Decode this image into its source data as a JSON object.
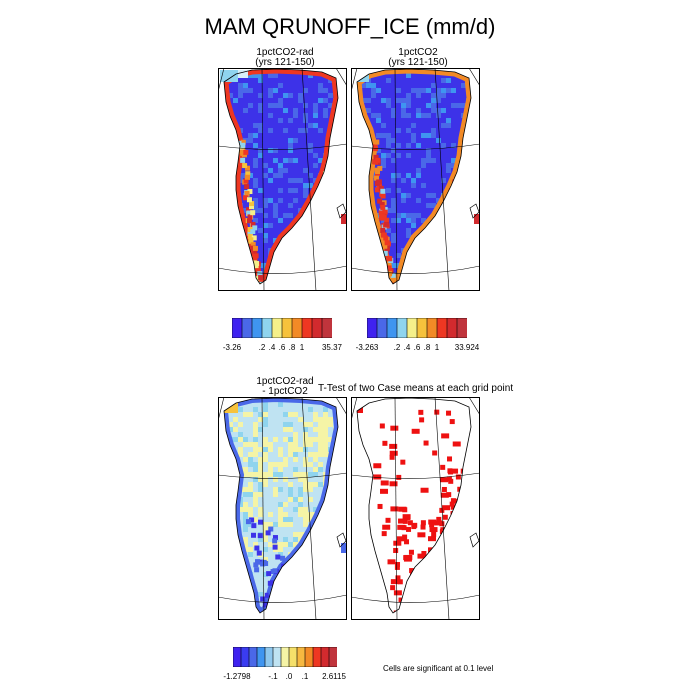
{
  "main_title": "MAM QRUNOFF_ICE (mm/d)",
  "panels": {
    "p1": {
      "title_line1": "1pctCO2-rad",
      "title_line2": "(yrs 121-150)"
    },
    "p2": {
      "title_line1": "1pctCO2",
      "title_line2": "(yrs 121-150)"
    },
    "p3": {
      "title_line1": "1pctCO2-rad",
      "title_line2": "- 1pctCO2"
    },
    "p4": {
      "title": "T-Test of two Case means at each grid point"
    }
  },
  "footnote": "Cells are significant at 0.1 level",
  "colorbars": {
    "cb1": {
      "labels": [
        "-3.26",
        ".2",
        ".4",
        ".6",
        ".8",
        "1",
        "35.37"
      ],
      "colors": [
        "#3f22f0",
        "#4a68e8",
        "#3f95f0",
        "#8fd4ee",
        "#f5f08a",
        "#f6c23c",
        "#f28a26",
        "#ee3722",
        "#d22a2e",
        "#c0343c"
      ]
    },
    "cb2": {
      "labels": [
        "-3.263",
        ".2",
        ".4",
        ".6",
        ".8",
        "1",
        "33.924"
      ],
      "colors": [
        "#3f22f0",
        "#4a68e8",
        "#3f95f0",
        "#8fd4ee",
        "#f5f08a",
        "#f6c23c",
        "#f28a26",
        "#ee3722",
        "#d22a2e",
        "#c0343c"
      ]
    },
    "cb3": {
      "labels": [
        "-1.2798",
        "-.1",
        ".0",
        ".1",
        "2.6115"
      ],
      "colors": [
        "#3f22f0",
        "#3a3cf0",
        "#4a68e8",
        "#3f95f0",
        "#8fc8ee",
        "#bfe3f2",
        "#f5f4a6",
        "#f5e06a",
        "#f6b840",
        "#f28a26",
        "#ee3722",
        "#d22a2e",
        "#c0343c"
      ]
    }
  },
  "chart_data": [
    {
      "type": "heatmap",
      "title": "1pctCO2-rad (yrs 121-150)",
      "region": "Greenland",
      "color_levels": [
        "-3.26",
        ".2",
        ".4",
        ".6",
        ".8",
        "1",
        "35.37"
      ],
      "pattern": "interior mostly dark blue (low runoff); yellow/orange/red high values along western and southern margins"
    },
    {
      "type": "heatmap",
      "title": "1pctCO2 (yrs 121-150)",
      "region": "Greenland",
      "color_levels": [
        "-3.263",
        ".2",
        ".4",
        ".6",
        ".8",
        "1",
        "33.924"
      ],
      "pattern": "interior dark blue; strong red band along western and southern margins"
    },
    {
      "type": "heatmap",
      "title": "1pctCO2-rad - 1pctCO2",
      "region": "Greenland",
      "color_levels": [
        "-1.2798",
        "-.1",
        ".0",
        ".1",
        "2.6115"
      ],
      "pattern": "interior light blue with yellow streaks (near zero); negative blue values along southern and western margins"
    },
    {
      "type": "heatmap",
      "title": "T-Test of two Case means at each grid point",
      "region": "Greenland",
      "pattern": "significant cells marked red, concentrated in the south and along the eastern margin"
    }
  ]
}
